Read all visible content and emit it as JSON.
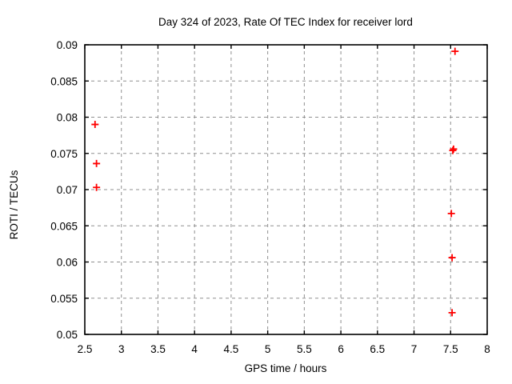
{
  "chart_data": {
    "type": "scatter",
    "title": "Day 324 of 2023, Rate Of TEC Index for receiver lord",
    "xlabel": "GPS time / hours",
    "ylabel": "ROTI / TECUs",
    "xlim": [
      2.5,
      8
    ],
    "ylim": [
      0.05,
      0.09
    ],
    "x_ticks": [
      2.5,
      3,
      3.5,
      4,
      4.5,
      5,
      5.5,
      6,
      6.5,
      7,
      7.5,
      8
    ],
    "x_tick_labels": [
      "2.5",
      "3",
      "3.5",
      "4",
      "4.5",
      "5",
      "5.5",
      "6",
      "6.5",
      "7",
      "7.5",
      "8"
    ],
    "y_ticks": [
      0.05,
      0.055,
      0.06,
      0.065,
      0.07,
      0.075,
      0.08,
      0.085,
      0.09
    ],
    "y_tick_labels": [
      "0.05",
      "0.055",
      "0.06",
      "0.065",
      "0.07",
      "0.075",
      "0.08",
      "0.085",
      "0.09"
    ],
    "grid": true,
    "legend": "none",
    "series": [
      {
        "name": "ROTI",
        "marker": "plus",
        "color": "#ff0000",
        "points": [
          [
            2.64,
            0.079
          ],
          [
            2.66,
            0.0736
          ],
          [
            2.66,
            0.0703
          ],
          [
            7.56,
            0.0891
          ],
          [
            7.53,
            0.0754
          ],
          [
            7.54,
            0.0756
          ],
          [
            7.51,
            0.0667
          ],
          [
            7.52,
            0.0606
          ],
          [
            7.52,
            0.053
          ]
        ]
      }
    ]
  },
  "colors": {
    "background": "#ffffff",
    "marker": "#ff0000",
    "grid": "#8f8f8f",
    "border": "#000000",
    "text": "#000000"
  }
}
